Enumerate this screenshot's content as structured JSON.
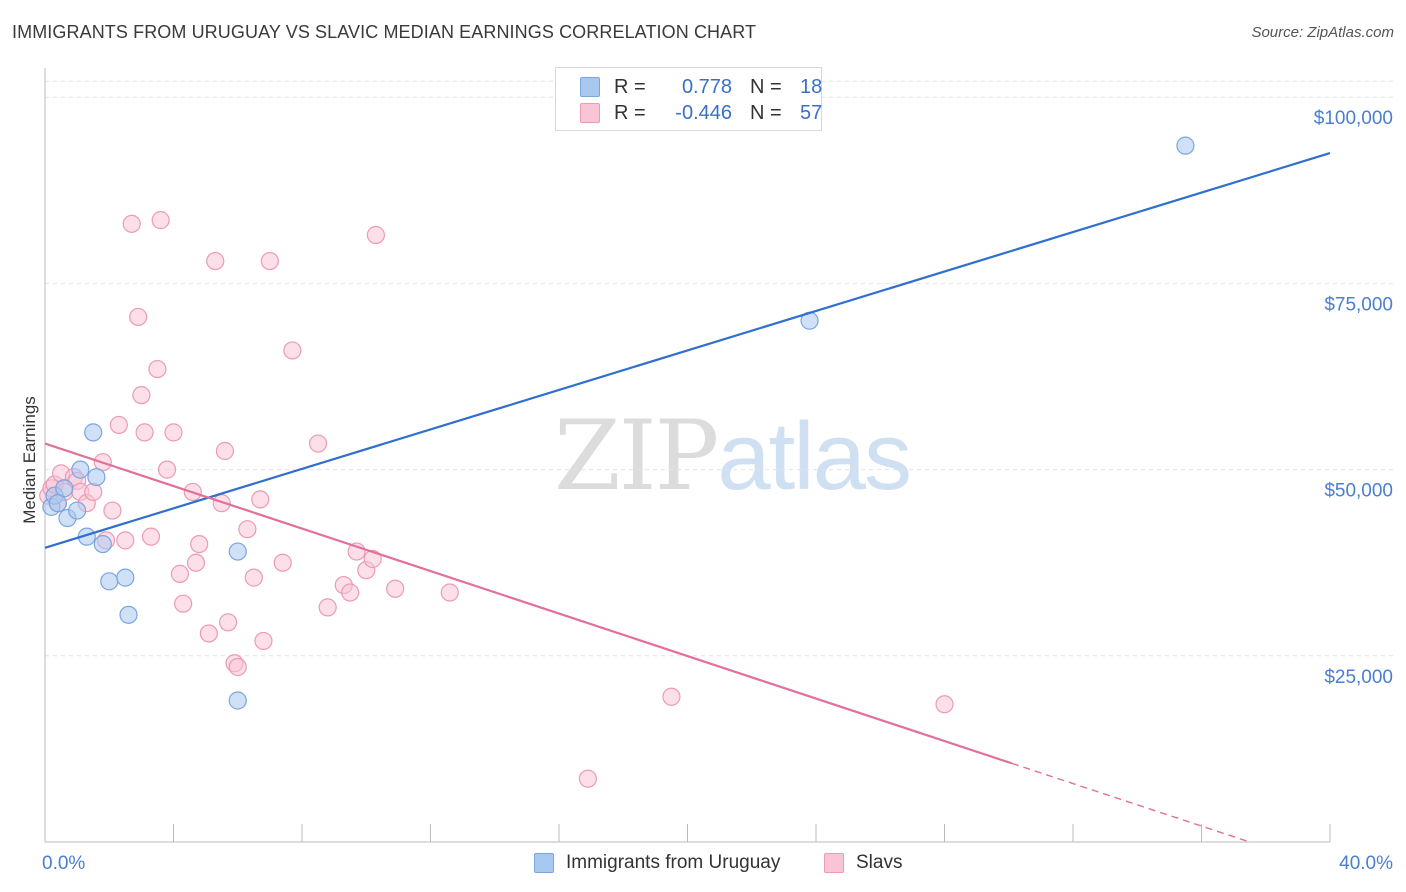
{
  "title": "IMMIGRANTS FROM URUGUAY VS SLAVIC MEDIAN EARNINGS CORRELATION CHART",
  "source": "Source: ZipAtlas.com",
  "watermark": {
    "part1": "ZIP",
    "part2": "atlas"
  },
  "legend": [
    {
      "r_label": "R =",
      "r_value": "0.778",
      "n_label": "N =",
      "n_value": "18",
      "color": "#a9c8f0",
      "border": "#7aa6e0"
    },
    {
      "r_label": "R =",
      "r_value": "-0.446",
      "n_label": "N =",
      "n_value": "57",
      "color": "#f9c4d6",
      "border": "#ec9ab6"
    }
  ],
  "bottom_legend": [
    {
      "label": "Immigrants from Uruguay",
      "color": "#a9c8f0",
      "border": "#7aa6e0"
    },
    {
      "label": "Slavs",
      "color": "#f9c4d6",
      "border": "#ec9ab6"
    }
  ],
  "chart_data": {
    "type": "scatter",
    "xlabel": "",
    "ylabel": "Median Earnings",
    "xlim": [
      0,
      40
    ],
    "ylim": [
      0,
      105000
    ],
    "x_tick_labels": [
      "0.0%",
      "40.0%"
    ],
    "y_ticks": [
      25000,
      50000,
      75000,
      100000
    ],
    "y_tick_labels": [
      "$25,000",
      "$50,000",
      "$75,000",
      "$100,000"
    ],
    "grid": true,
    "series": [
      {
        "name": "Immigrants from Uruguay",
        "color": "#7aa6e0",
        "fill": "#a9c8f0",
        "line_color": "#2f6fce",
        "points": [
          [
            0.2,
            45000
          ],
          [
            0.3,
            46500
          ],
          [
            0.6,
            47500
          ],
          [
            0.7,
            43500
          ],
          [
            1.0,
            44500
          ],
          [
            1.1,
            50000
          ],
          [
            1.3,
            41000
          ],
          [
            1.5,
            55000
          ],
          [
            1.6,
            49000
          ],
          [
            1.8,
            40000
          ],
          [
            2.0,
            35000
          ],
          [
            2.5,
            35500
          ],
          [
            2.6,
            30500
          ],
          [
            6.0,
            39000
          ],
          [
            6.0,
            19000
          ],
          [
            23.8,
            70000
          ],
          [
            35.5,
            93500
          ],
          [
            0.4,
            45500
          ]
        ],
        "trend": {
          "x": [
            0,
            40
          ],
          "y": [
            39500,
            92500
          ],
          "dashed_from_x": null
        }
      },
      {
        "name": "Slavs",
        "color": "#ec9ab6",
        "fill": "#f9c4d6",
        "line_color": "#e2709a",
        "points": [
          [
            0.1,
            46500
          ],
          [
            0.2,
            47500
          ],
          [
            0.3,
            48000
          ],
          [
            0.4,
            45500
          ],
          [
            0.5,
            49500
          ],
          [
            0.6,
            47000
          ],
          [
            0.9,
            49000
          ],
          [
            1.0,
            48500
          ],
          [
            1.1,
            47000
          ],
          [
            1.3,
            45500
          ],
          [
            1.5,
            47000
          ],
          [
            1.8,
            51000
          ],
          [
            2.1,
            44500
          ],
          [
            2.3,
            56000
          ],
          [
            2.5,
            40500
          ],
          [
            2.7,
            83000
          ],
          [
            2.9,
            70500
          ],
          [
            3.0,
            60000
          ],
          [
            3.1,
            55000
          ],
          [
            3.3,
            41000
          ],
          [
            3.5,
            63500
          ],
          [
            3.6,
            83500
          ],
          [
            3.8,
            50000
          ],
          [
            4.0,
            55000
          ],
          [
            4.2,
            36000
          ],
          [
            4.3,
            32000
          ],
          [
            4.6,
            47000
          ],
          [
            4.7,
            37500
          ],
          [
            4.8,
            40000
          ],
          [
            5.1,
            28000
          ],
          [
            5.3,
            78000
          ],
          [
            5.5,
            45500
          ],
          [
            5.6,
            52500
          ],
          [
            5.7,
            29500
          ],
          [
            5.9,
            24000
          ],
          [
            6.0,
            23500
          ],
          [
            6.3,
            42000
          ],
          [
            6.5,
            35500
          ],
          [
            6.7,
            46000
          ],
          [
            6.8,
            27000
          ],
          [
            7.0,
            78000
          ],
          [
            7.4,
            37500
          ],
          [
            7.7,
            66000
          ],
          [
            8.5,
            53500
          ],
          [
            8.8,
            31500
          ],
          [
            9.3,
            34500
          ],
          [
            9.5,
            33500
          ],
          [
            9.7,
            39000
          ],
          [
            10.0,
            36500
          ],
          [
            10.2,
            38000
          ],
          [
            10.3,
            81500
          ],
          [
            10.9,
            34000
          ],
          [
            12.6,
            33500
          ],
          [
            16.9,
            8500
          ],
          [
            19.5,
            19500
          ],
          [
            28.0,
            18500
          ],
          [
            1.9,
            40500
          ]
        ],
        "trend": {
          "x": [
            0,
            37.5
          ],
          "y": [
            53500,
            0
          ],
          "dashed_from_x": 30.1
        }
      }
    ]
  }
}
